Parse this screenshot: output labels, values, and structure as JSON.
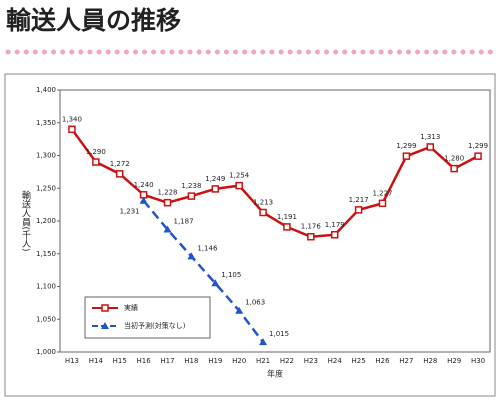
{
  "chart_data": {
    "type": "line",
    "title": "輸送人員の推移",
    "categories": [
      "H13",
      "H14",
      "H15",
      "H16",
      "H17",
      "H18",
      "H19",
      "H20",
      "H21",
      "H22",
      "H23",
      "H24",
      "H25",
      "H26",
      "H27",
      "H28",
      "H29",
      "H30"
    ],
    "series": [
      {
        "name": "実績",
        "color": "#cc1111",
        "marker": "square",
        "dashed": false,
        "values": [
          1340,
          1290,
          1272,
          1240,
          1228,
          1238,
          1249,
          1254,
          1213,
          1191,
          1176,
          1179,
          1217,
          1227,
          1299,
          1313,
          1280,
          1299
        ],
        "value_labels": [
          "1,340",
          "1,290",
          "1,272",
          "1,240",
          "1,228",
          "1,238",
          "1,249",
          "1,254",
          "1,213",
          "1,191",
          "1,176",
          "1,179",
          "1,217",
          "1,227",
          "1,299",
          "1,313",
          "1,280",
          "1,299"
        ]
      },
      {
        "name": "当初予測(対策なし)",
        "color": "#2255cc",
        "marker": "triangle",
        "dashed": true,
        "values": [
          null,
          null,
          null,
          1231,
          1187,
          1146,
          1105,
          1063,
          1015,
          null,
          null,
          null,
          null,
          null,
          null,
          null,
          null,
          null
        ],
        "value_labels": [
          null,
          null,
          null,
          "1,231",
          "1,187",
          "1,146",
          "1,105",
          "1,063",
          "1,015",
          null,
          null,
          null,
          null,
          null,
          null,
          null,
          null,
          null
        ]
      }
    ],
    "ylim": [
      1000,
      1400
    ],
    "yticks": [
      {
        "value": 1000,
        "label": "1,000"
      },
      {
        "value": 1050,
        "label": "1,050"
      },
      {
        "value": 1100,
        "label": "1,100"
      },
      {
        "value": 1150,
        "label": "1,150"
      },
      {
        "value": 1200,
        "label": "1,200"
      },
      {
        "value": 1250,
        "label": "1,250"
      },
      {
        "value": 1300,
        "label": "1,300"
      },
      {
        "value": 1350,
        "label": "1,350"
      },
      {
        "value": 1400,
        "label": "1,400"
      }
    ],
    "ylabel": "輸送人員(千人)",
    "xlabel": "年度",
    "grid": false,
    "legend": "lower left"
  }
}
